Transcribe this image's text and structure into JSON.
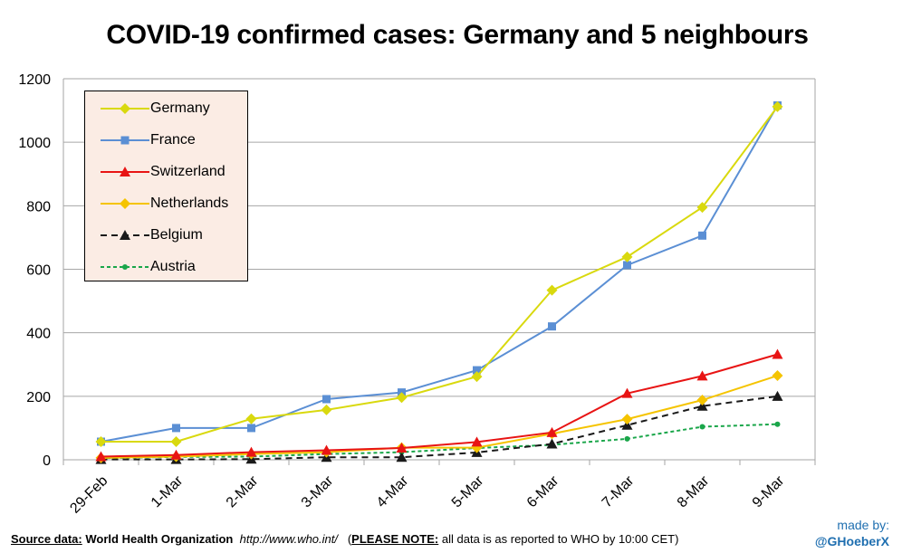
{
  "chart_data": {
    "type": "line",
    "title": "COVID-19 confirmed cases: Germany and 5 neighbours",
    "xlabel": "",
    "ylabel": "",
    "ylim": [
      0,
      1200
    ],
    "yticks": [
      0,
      200,
      400,
      600,
      800,
      1000,
      1200
    ],
    "grid": true,
    "legend_position": "top-left",
    "categories": [
      "29-Feb",
      "1-Mar",
      "2-Mar",
      "3-Mar",
      "4-Mar",
      "5-Mar",
      "6-Mar",
      "7-Mar",
      "8-Mar",
      "9-Mar"
    ],
    "series": [
      {
        "name": "Germany",
        "values": [
          57,
          57,
          129,
          157,
          196,
          262,
          534,
          639,
          795,
          1112
        ],
        "color": "#d9d90e",
        "marker": "diamond",
        "dash": "solid"
      },
      {
        "name": "France",
        "values": [
          57,
          100,
          100,
          191,
          212,
          282,
          420,
          613,
          706,
          1116
        ],
        "color": "#5b8fd4",
        "marker": "square",
        "dash": "solid"
      },
      {
        "name": "Switzerland",
        "values": [
          10,
          15,
          24,
          30,
          37,
          56,
          86,
          209,
          264,
          332
        ],
        "color": "#e81414",
        "marker": "triangle",
        "dash": "solid"
      },
      {
        "name": "Netherlands",
        "values": [
          6,
          10,
          18,
          24,
          38,
          38,
          82,
          128,
          188,
          265
        ],
        "color": "#f5c400",
        "marker": "diamond",
        "dash": "solid"
      },
      {
        "name": "Belgium",
        "values": [
          1,
          1,
          2,
          8,
          8,
          23,
          50,
          109,
          169,
          200
        ],
        "color": "#1a1a1a",
        "marker": "triangle",
        "dash": "dashed"
      },
      {
        "name": "Austria",
        "values": [
          5,
          9,
          10,
          18,
          24,
          37,
          47,
          66,
          104,
          112
        ],
        "color": "#1aa64a",
        "marker": "circle",
        "dash": "dotted"
      }
    ]
  },
  "footer": {
    "source_label": "Source data:",
    "source_org": "World Health Organization",
    "source_url": "http://www.who.int/",
    "note_label": "PLEASE NOTE:",
    "note_text": "all data is as reported to WHO by 10:00 CET"
  },
  "credit": {
    "made_by": "made by:",
    "handle": "@GHoeberX"
  },
  "colors": {
    "legend_bg": "#fbece4",
    "grid": "#a6a6a6",
    "credit": "#1f6fb0"
  }
}
